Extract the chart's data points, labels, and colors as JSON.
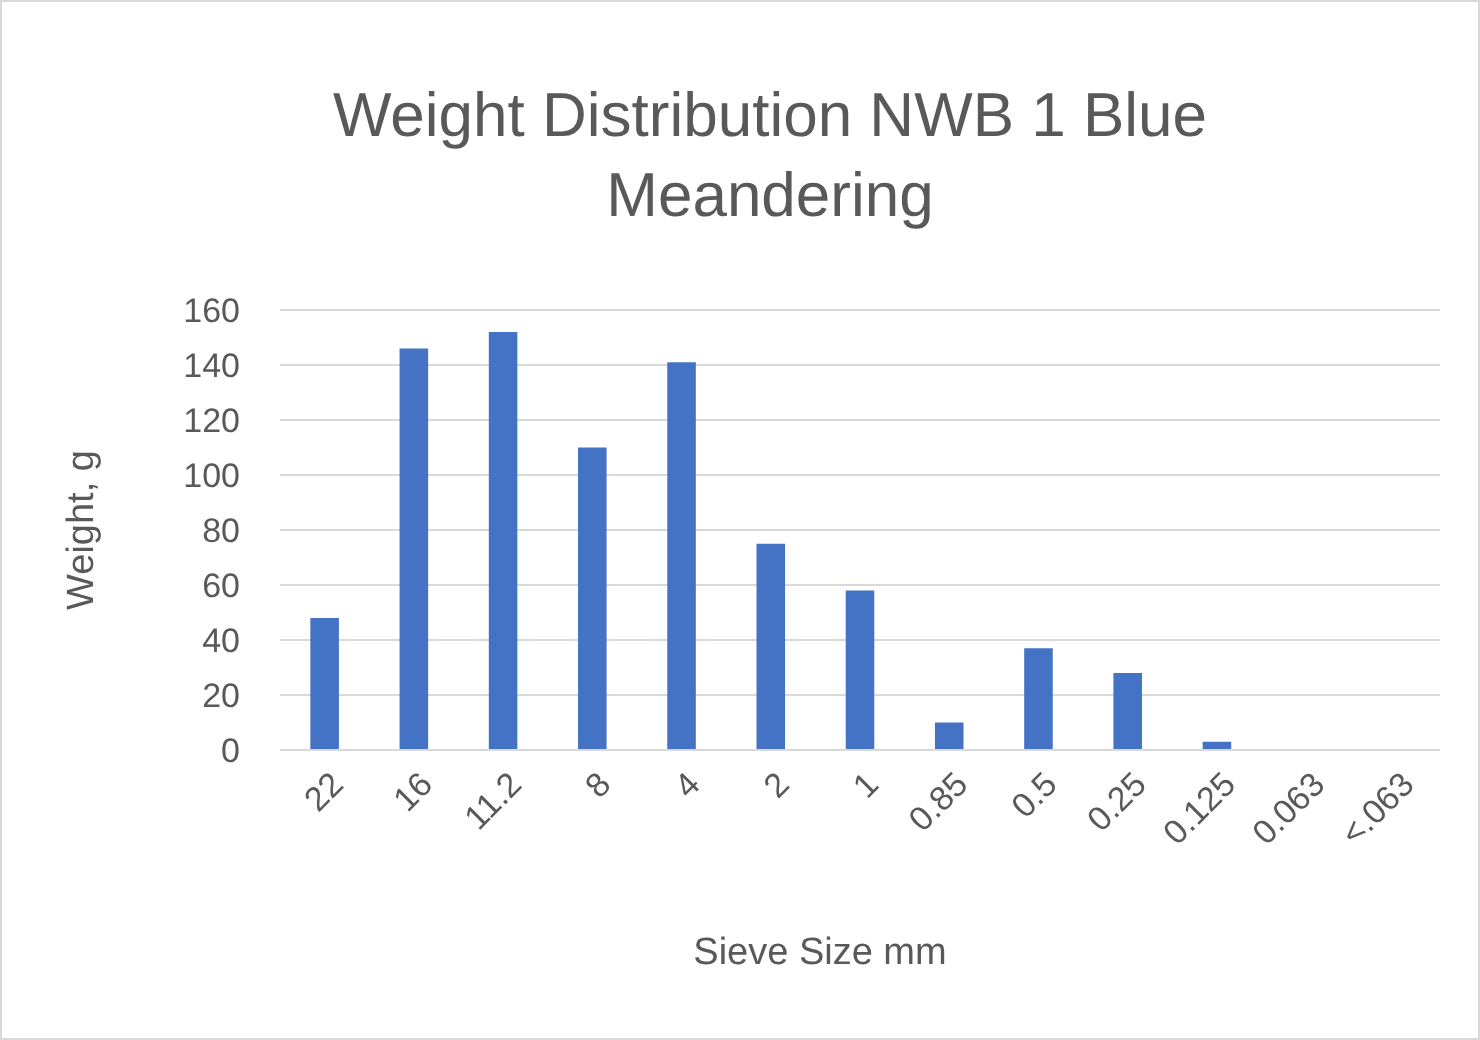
{
  "chart_data": {
    "type": "bar",
    "title": "Weight Distribution NWB 1 Blue Meandering",
    "xlabel": "Sieve Size mm",
    "ylabel": "Weight, g",
    "categories": [
      "22",
      "16",
      "11.2",
      "8",
      "4",
      "2",
      "1",
      "0.85",
      "0.5",
      "0.25",
      "0.125",
      "0.063",
      "<.063"
    ],
    "values": [
      48,
      146,
      152,
      110,
      141,
      75,
      58,
      10,
      37,
      28,
      3,
      0,
      0
    ],
    "color": "#4472c4",
    "ylim": [
      0,
      160
    ],
    "yticks": [
      0,
      20,
      40,
      60,
      80,
      100,
      120,
      140,
      160
    ],
    "grid": "y"
  }
}
